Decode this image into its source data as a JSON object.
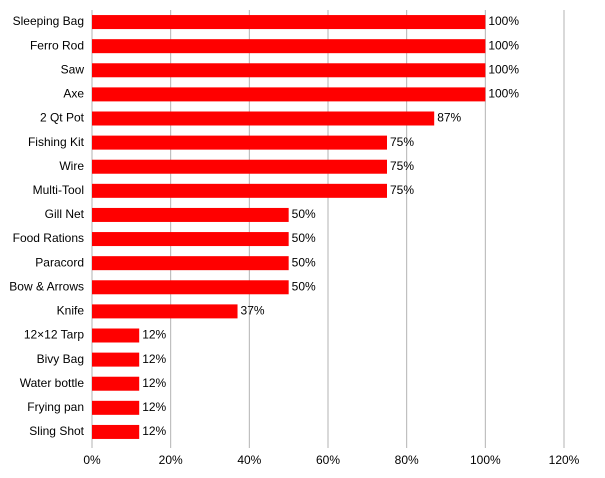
{
  "chart_data": {
    "type": "hbar",
    "categories": [
      "Sleeping Bag",
      "Ferro Rod",
      "Saw",
      "Axe",
      "2 Qt Pot",
      "Fishing Kit",
      "Wire",
      "Multi-Tool",
      "Gill Net",
      "Food Rations",
      "Paracord",
      "Bow & Arrows",
      "Knife",
      "12×12 Tarp",
      "Bivy Bag",
      "Water bottle",
      "Frying pan",
      "Sling Shot"
    ],
    "values": [
      100,
      100,
      100,
      100,
      87,
      75,
      75,
      75,
      50,
      50,
      50,
      50,
      37,
      12,
      12,
      12,
      12,
      12
    ],
    "value_labels": [
      "100%",
      "100%",
      "100%",
      "100%",
      "87%",
      "75%",
      "75%",
      "75%",
      "50%",
      "50%",
      "50%",
      "50%",
      "37%",
      "12%",
      "12%",
      "12%",
      "12%",
      "12%"
    ],
    "color": "#ff0000",
    "xlim": [
      0,
      120
    ],
    "xticks": [
      {
        "value": 0,
        "label": "0%"
      },
      {
        "value": 20,
        "label": "20%"
      },
      {
        "value": 40,
        "label": "40%"
      },
      {
        "value": 60,
        "label": "60%"
      },
      {
        "value": 80,
        "label": "80%"
      },
      {
        "value": 100,
        "label": "100%"
      },
      {
        "value": 120,
        "label": "120%"
      }
    ],
    "grid": true
  }
}
